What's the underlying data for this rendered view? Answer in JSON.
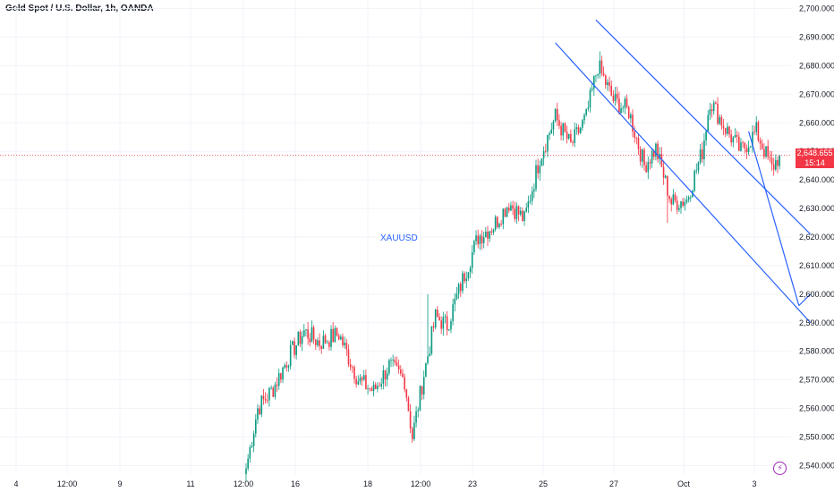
{
  "header": {
    "title": "Gold Spot / U.S. Dollar, 1h, OANDA"
  },
  "colors": {
    "up": "#089981",
    "down": "#f23645",
    "trendline": "#2962ff",
    "grid": "#f0f3fa",
    "axis_text": "#131722"
  },
  "price_tag": {
    "price": "2,648.655",
    "countdown": "15:14"
  },
  "chart_data": {
    "type": "candlestick",
    "symbol": "Gold Spot / U.S. Dollar",
    "timeframe": "1h",
    "source": "OANDA",
    "y_ticks": [
      "2,700.000",
      "2,690.000",
      "2,680.000",
      "2,670.000",
      "2,660.000",
      "2,650.000",
      "2,640.000",
      "2,630.000",
      "2,620.000",
      "2,610.000",
      "2,600.000",
      "2,590.000",
      "2,580.000",
      "2,570.000",
      "2,560.000",
      "2,550.000",
      "2,540.000"
    ],
    "y_tick_values": [
      2700,
      2690,
      2680,
      2670,
      2660,
      2650,
      2640,
      2630,
      2620,
      2610,
      2600,
      2590,
      2580,
      2570,
      2560,
      2550,
      2540
    ],
    "ylim": [
      2537,
      2703
    ],
    "x_ticks": [
      "4",
      "12:00",
      "9",
      "11",
      "12:00",
      "16",
      "18",
      "12:00",
      "23",
      "25",
      "27",
      "Oct",
      "3"
    ],
    "grid": true,
    "annotation": "XAUUSD",
    "current_price": 2648.655,
    "anchors": [
      {
        "i": 0,
        "v": 2539
      },
      {
        "i": 6,
        "v": 2560
      },
      {
        "i": 14,
        "v": 2567
      },
      {
        "i": 22,
        "v": 2578
      },
      {
        "i": 30,
        "v": 2587
      },
      {
        "i": 38,
        "v": 2583
      },
      {
        "i": 48,
        "v": 2586
      },
      {
        "i": 58,
        "v": 2570
      },
      {
        "i": 66,
        "v": 2566
      },
      {
        "i": 74,
        "v": 2575
      },
      {
        "i": 82,
        "v": 2570
      },
      {
        "i": 86,
        "v": 2550
      },
      {
        "i": 92,
        "v": 2572
      },
      {
        "i": 98,
        "v": 2592
      },
      {
        "i": 104,
        "v": 2589
      },
      {
        "i": 112,
        "v": 2605
      },
      {
        "i": 120,
        "v": 2620
      },
      {
        "i": 128,
        "v": 2624
      },
      {
        "i": 136,
        "v": 2632
      },
      {
        "i": 144,
        "v": 2626
      },
      {
        "i": 152,
        "v": 2648
      },
      {
        "i": 160,
        "v": 2662
      },
      {
        "i": 168,
        "v": 2652
      },
      {
        "i": 176,
        "v": 2662
      },
      {
        "i": 182,
        "v": 2680
      },
      {
        "i": 190,
        "v": 2668
      },
      {
        "i": 198,
        "v": 2664
      },
      {
        "i": 206,
        "v": 2645
      },
      {
        "i": 212,
        "v": 2651
      },
      {
        "i": 220,
        "v": 2632
      },
      {
        "i": 228,
        "v": 2633
      },
      {
        "i": 236,
        "v": 2650
      },
      {
        "i": 240,
        "v": 2668
      },
      {
        "i": 248,
        "v": 2658
      },
      {
        "i": 256,
        "v": 2650
      },
      {
        "i": 264,
        "v": 2657
      },
      {
        "i": 272,
        "v": 2644
      },
      {
        "i": 276,
        "v": 2648.655
      }
    ],
    "spikes": [
      {
        "i": 94,
        "high": 2600
      },
      {
        "i": 86,
        "low": 2548
      },
      {
        "i": 183,
        "high": 2685
      },
      {
        "i": 218,
        "low": 2625
      }
    ],
    "trendlines": [
      {
        "i1": 160,
        "v1": 2688,
        "i2": 292,
        "v2": 2590
      },
      {
        "i1": 181,
        "v1": 2696,
        "i2": 292,
        "v2": 2621
      },
      {
        "i1": 260,
        "v1": 2657,
        "i2": 286,
        "v2": 2596
      },
      {
        "i1": 286,
        "v1": 2596,
        "i2": 292,
        "v2": 2600
      }
    ]
  }
}
